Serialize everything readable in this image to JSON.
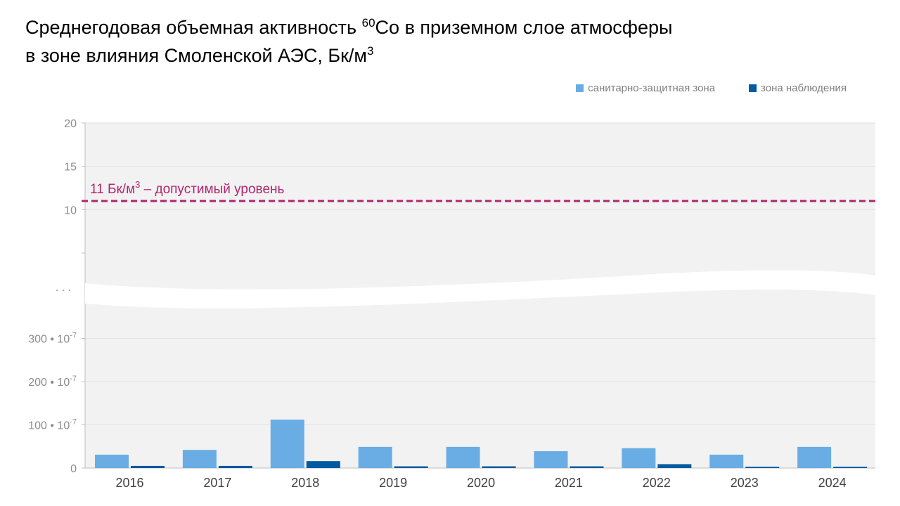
{
  "title": {
    "line1_pre": "Среднегодовая объемная активность ",
    "isotope_mass": "60",
    "line1_post": "Co в приземном слое атмосферы",
    "line2_pre": "в зоне влияния Смоленской АЭС, Бк/м",
    "unit_exp": "3"
  },
  "colors": {
    "sanitary": "#6aade4",
    "observation": "#005ba1",
    "limit": "#b3246e",
    "plot_bg": "#f2f2f2"
  },
  "chart_data": {
    "type": "bar",
    "categories": [
      "2016",
      "2017",
      "2018",
      "2019",
      "2020",
      "2021",
      "2022",
      "2023",
      "2024"
    ],
    "series": [
      {
        "name": "санитарно-защитная зона",
        "values": [
          31,
          42,
          112,
          49,
          49,
          39,
          46,
          31,
          49
        ]
      },
      {
        "name": "зона наблюдения",
        "values": [
          5,
          5,
          16,
          4,
          4,
          4,
          9,
          3,
          3
        ]
      }
    ],
    "value_multiplier": "• 10-7",
    "lower_axis": {
      "ylim": [
        0,
        400
      ],
      "ticks": [
        {
          "value": 0,
          "label": "0"
        },
        {
          "value": 100,
          "label": "100",
          "suffix": "• 10",
          "exp": "-7"
        },
        {
          "value": 200,
          "label": "200",
          "suffix": "• 10",
          "exp": "-7"
        },
        {
          "value": 300,
          "label": "300",
          "suffix": "• 10",
          "exp": "-7"
        }
      ]
    },
    "upper_axis": {
      "ylim": [
        5,
        20
      ],
      "ticks": [
        {
          "value": 10,
          "label": "10"
        },
        {
          "value": 15,
          "label": "15"
        },
        {
          "value": 20,
          "label": "20"
        }
      ]
    },
    "axis_break_label": ". . .",
    "limit_line": {
      "value": 11,
      "label_pre": "11 Бк/м",
      "label_exp": "3",
      "label_post": " – допустимый уровень"
    },
    "legend_position": "top-right",
    "grid": true
  }
}
